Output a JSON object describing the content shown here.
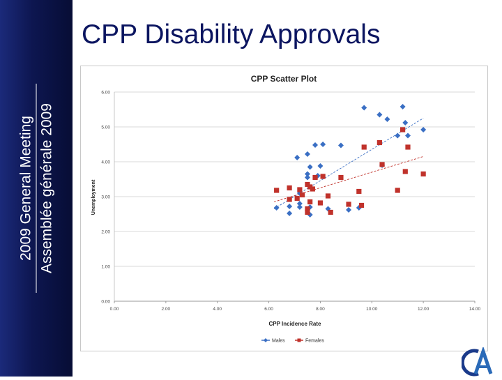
{
  "sidebar": {
    "line1": "2009 General Meeting",
    "line2": "Assemblée générale 2009"
  },
  "slide_title": "CPP Disability Approvals",
  "colors": {
    "sidebar": "#0d1650",
    "title": "#0b1560",
    "males": "#3a6fc4",
    "females": "#c0322b"
  },
  "logo": {
    "icon": "cia-logo-icon"
  },
  "chart_data": {
    "type": "scatter",
    "title": "CPP Scatter Plot",
    "xlabel": "CPP Incidence Rate",
    "ylabel": "Unemployment",
    "xlim": [
      0,
      14
    ],
    "ylim": [
      0,
      6
    ],
    "xticks": [
      "0.00",
      "2.00",
      "4.00",
      "6.00",
      "8.00",
      "10.00",
      "12.00",
      "14.00"
    ],
    "yticks": [
      "0.00",
      "1.00",
      "2.00",
      "3.00",
      "4.00",
      "5.00",
      "6.00"
    ],
    "grid": true,
    "legend_position": "bottom",
    "series": [
      {
        "name": "Males",
        "color": "#3a6fc4",
        "marker": "diamond",
        "points": [
          [
            6.3,
            2.68
          ],
          [
            6.8,
            2.52
          ],
          [
            6.8,
            2.72
          ],
          [
            7.1,
            4.12
          ],
          [
            7.2,
            2.7
          ],
          [
            7.2,
            2.8
          ],
          [
            7.2,
            3.1
          ],
          [
            7.5,
            4.22
          ],
          [
            7.5,
            3.65
          ],
          [
            7.5,
            3.55
          ],
          [
            7.6,
            3.85
          ],
          [
            7.6,
            2.48
          ],
          [
            7.6,
            2.7
          ],
          [
            7.8,
            4.48
          ],
          [
            7.9,
            3.6
          ],
          [
            8.0,
            3.88
          ],
          [
            8.1,
            4.5
          ],
          [
            8.3,
            2.65
          ],
          [
            8.8,
            4.47
          ],
          [
            9.1,
            2.62
          ],
          [
            9.5,
            2.68
          ],
          [
            9.7,
            5.55
          ],
          [
            10.3,
            5.35
          ],
          [
            10.4,
            3.9
          ],
          [
            10.6,
            5.22
          ],
          [
            11.0,
            4.75
          ],
          [
            11.2,
            5.58
          ],
          [
            11.3,
            5.12
          ],
          [
            11.4,
            4.75
          ],
          [
            12.0,
            4.92
          ]
        ],
        "trendline": [
          [
            6.2,
            2.65
          ],
          [
            12.0,
            5.25
          ]
        ]
      },
      {
        "name": "Females",
        "color": "#c0322b",
        "marker": "square",
        "points": [
          [
            6.3,
            3.18
          ],
          [
            6.8,
            3.25
          ],
          [
            6.8,
            2.92
          ],
          [
            7.1,
            2.95
          ],
          [
            7.2,
            3.2
          ],
          [
            7.3,
            3.05
          ],
          [
            7.5,
            2.65
          ],
          [
            7.5,
            2.55
          ],
          [
            7.5,
            3.35
          ],
          [
            7.6,
            3.28
          ],
          [
            7.6,
            2.85
          ],
          [
            7.7,
            3.22
          ],
          [
            7.8,
            3.55
          ],
          [
            8.0,
            2.82
          ],
          [
            8.1,
            3.58
          ],
          [
            8.3,
            3.02
          ],
          [
            8.4,
            2.55
          ],
          [
            8.8,
            3.55
          ],
          [
            9.1,
            2.78
          ],
          [
            9.5,
            3.15
          ],
          [
            9.6,
            2.75
          ],
          [
            9.7,
            4.42
          ],
          [
            10.3,
            4.55
          ],
          [
            10.4,
            3.92
          ],
          [
            11.0,
            3.18
          ],
          [
            11.2,
            4.92
          ],
          [
            11.3,
            3.72
          ],
          [
            11.4,
            4.42
          ],
          [
            12.0,
            3.65
          ]
        ],
        "trendline": [
          [
            6.2,
            2.85
          ],
          [
            12.0,
            4.15
          ]
        ]
      }
    ]
  }
}
